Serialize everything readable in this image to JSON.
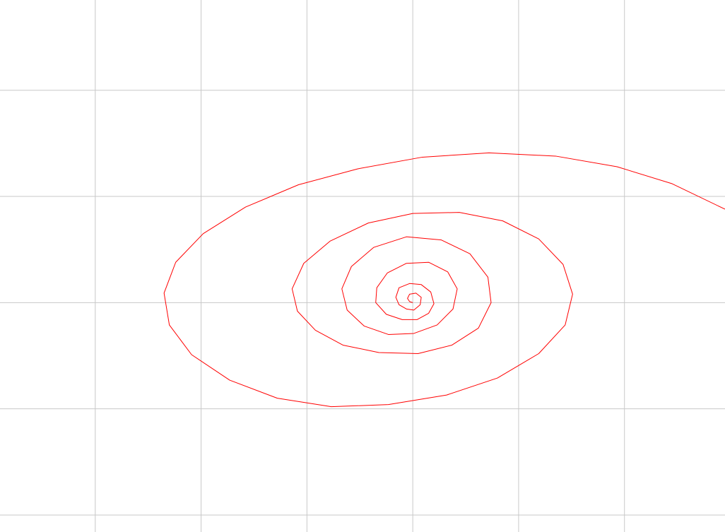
{
  "chart_data": {
    "type": "line",
    "title": "",
    "xlabel": "",
    "ylabel": "",
    "grid": true,
    "legend": "none",
    "colors": {
      "grid": "#c8c8c8",
      "series": "#ff0000",
      "background": "#ffffff"
    },
    "xlim": [
      -3.9,
      2.95
    ],
    "ylim": [
      -2.16,
      2.85
    ],
    "grid_x": [
      -3,
      -2,
      -1,
      0,
      1,
      2
    ],
    "grid_y": [
      -2,
      -1,
      0,
      1,
      2
    ],
    "series": [
      {
        "name": "",
        "points": [
          [
            0.0,
            0.0
          ],
          [
            -0.03,
            0.01
          ],
          [
            -0.05,
            0.04
          ],
          [
            -0.03,
            0.08
          ],
          [
            0.03,
            0.09
          ],
          [
            0.08,
            0.05
          ],
          [
            0.07,
            -0.02
          ],
          [
            0.01,
            -0.07
          ],
          [
            -0.06,
            -0.06
          ],
          [
            -0.13,
            -0.02
          ],
          [
            -0.16,
            0.05
          ],
          [
            -0.13,
            0.14
          ],
          [
            -0.03,
            0.18
          ],
          [
            0.08,
            0.17
          ],
          [
            0.17,
            0.1
          ],
          [
            0.2,
            -0.01
          ],
          [
            0.15,
            -0.1
          ],
          [
            0.04,
            -0.16
          ],
          [
            -0.1,
            -0.16
          ],
          [
            -0.25,
            -0.11
          ],
          [
            -0.35,
            0.0
          ],
          [
            -0.34,
            0.14
          ],
          [
            -0.24,
            0.28
          ],
          [
            -0.06,
            0.37
          ],
          [
            0.15,
            0.38
          ],
          [
            0.33,
            0.29
          ],
          [
            0.42,
            0.13
          ],
          [
            0.38,
            -0.06
          ],
          [
            0.23,
            -0.21
          ],
          [
            0.01,
            -0.29
          ],
          [
            -0.23,
            -0.3
          ],
          [
            -0.46,
            -0.22
          ],
          [
            -0.62,
            -0.07
          ],
          [
            -0.67,
            0.13
          ],
          [
            -0.58,
            0.34
          ],
          [
            -0.37,
            0.52
          ],
          [
            -0.06,
            0.62
          ],
          [
            0.27,
            0.59
          ],
          [
            0.54,
            0.46
          ],
          [
            0.71,
            0.24
          ],
          [
            0.74,
            0.0
          ],
          [
            0.62,
            -0.24
          ],
          [
            0.37,
            -0.4
          ],
          [
            0.05,
            -0.48
          ],
          [
            -0.32,
            -0.47
          ],
          [
            -0.66,
            -0.4
          ],
          [
            -0.92,
            -0.26
          ],
          [
            -1.09,
            -0.08
          ],
          [
            -1.14,
            0.13
          ],
          [
            -1.03,
            0.37
          ],
          [
            -0.78,
            0.58
          ],
          [
            -0.42,
            0.75
          ],
          [
            0.0,
            0.84
          ],
          [
            0.44,
            0.85
          ],
          [
            0.85,
            0.77
          ],
          [
            1.19,
            0.6
          ],
          [
            1.42,
            0.36
          ],
          [
            1.51,
            0.08
          ],
          [
            1.44,
            -0.21
          ],
          [
            1.19,
            -0.48
          ],
          [
            0.8,
            -0.71
          ],
          [
            0.32,
            -0.87
          ],
          [
            -0.23,
            -0.96
          ],
          [
            -0.77,
            -0.98
          ],
          [
            -1.28,
            -0.9
          ],
          [
            -1.73,
            -0.73
          ],
          [
            -2.09,
            -0.49
          ],
          [
            -2.3,
            -0.21
          ],
          [
            -2.35,
            0.09
          ],
          [
            -2.24,
            0.38
          ],
          [
            -1.98,
            0.65
          ],
          [
            -1.58,
            0.9
          ],
          [
            -1.08,
            1.11
          ],
          [
            -0.52,
            1.26
          ],
          [
            0.09,
            1.37
          ],
          [
            0.72,
            1.41
          ],
          [
            1.35,
            1.38
          ],
          [
            1.93,
            1.28
          ],
          [
            2.45,
            1.12
          ],
          [
            2.95,
            0.88
          ]
        ]
      }
    ]
  }
}
